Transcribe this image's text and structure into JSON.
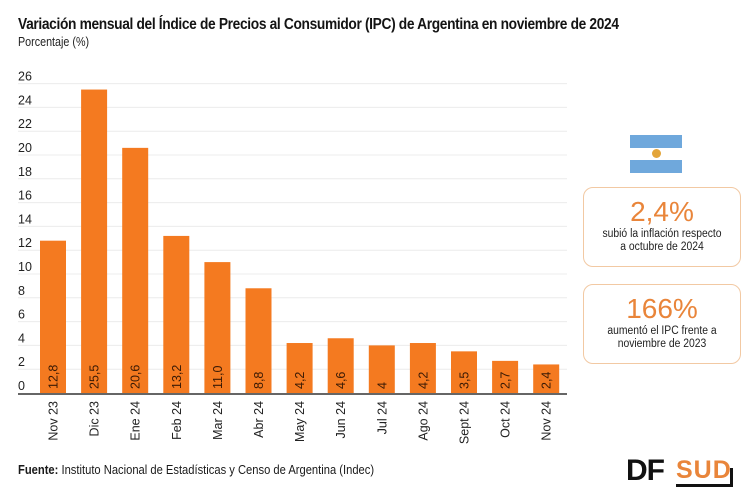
{
  "header": {
    "title": "Variación mensual del Índice de Precios al Consumidor (IPC) de Argentina en noviembre de 2024",
    "subtitle": "Porcentaje (%)"
  },
  "chart_data": {
    "type": "bar",
    "title": "Variación mensual del Índice de Precios al Consumidor (IPC) de Argentina en noviembre de 2024",
    "ylabel": "Porcentaje (%)",
    "xlabel": "",
    "categories": [
      "Nov 23",
      "Dic 23",
      "Ene 24",
      "Feb 24",
      "Mar 24",
      "Abr 24",
      "May 24",
      "Jun 24",
      "Jul 24",
      "Ago 24",
      "Sept 24",
      "Oct 24",
      "Nov 24"
    ],
    "values": [
      12.8,
      25.5,
      20.6,
      13.2,
      11.0,
      8.8,
      4.2,
      4.6,
      4,
      4.2,
      3.5,
      2.7,
      2.4
    ],
    "value_labels": [
      "12,8",
      "25,5",
      "20,6",
      "13,2",
      "11,0",
      "8,8",
      "4,2",
      "4,6",
      "4",
      "4,2",
      "3,5",
      "2,7",
      "2,4"
    ],
    "ylim": [
      0,
      26
    ],
    "yticks": [
      0,
      2,
      4,
      6,
      8,
      10,
      12,
      14,
      16,
      18,
      20,
      22,
      24,
      26
    ],
    "grid": true,
    "bar_color": "#f47a20"
  },
  "flag": {
    "icon": "argentina-flag-icon",
    "stripe_color": "#6fa8dc",
    "sun_color": "#e3a53a"
  },
  "cards": [
    {
      "value": "2,4%",
      "description_line1": "subió la inflación respecto",
      "description_line2": "a octubre de 2024"
    },
    {
      "value": "166%",
      "description_line1": "aumentó el IPC frente a",
      "description_line2": "noviembre de 2023"
    }
  ],
  "footer": {
    "source_label": "Fuente:",
    "source_text": " Instituto Nacional de Estadísticas y Censo de Argentina (Indec)"
  },
  "logo": {
    "part1": "DF",
    "part2": "SUD"
  },
  "colors": {
    "accent": "#e9853a",
    "bar": "#f47a20",
    "card_border": "#f2c9a3"
  }
}
